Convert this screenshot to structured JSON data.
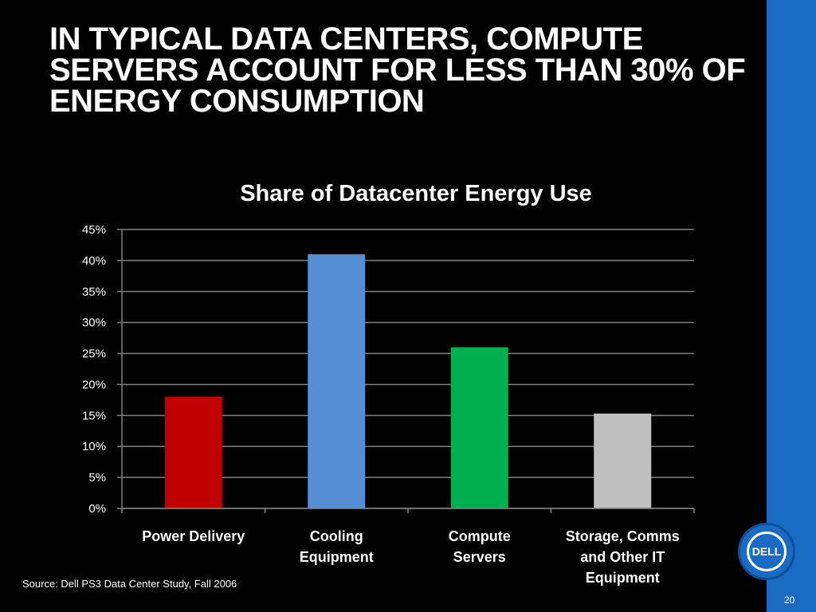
{
  "slide": {
    "title": "IN TYPICAL DATA CENTERS, COMPUTE SERVERS ACCOUNT FOR LESS THAN 30% OF ENERGY CONSUMPTION",
    "source": "Source: Dell PS3 Data Center Study, Fall 2006",
    "page_number": "20",
    "logo_text": "DELL"
  },
  "colors": {
    "background": "#000000",
    "accent_bar": "#1a6bc4"
  },
  "chart_data": {
    "type": "bar",
    "title": "Share of Datacenter Energy Use",
    "xlabel": "",
    "ylabel": "",
    "categories": [
      [
        "Power Delivery"
      ],
      [
        "Cooling",
        "Equipment"
      ],
      [
        "Compute",
        "Servers"
      ],
      [
        "Storage, Comms",
        "and Other IT",
        "Equipment"
      ]
    ],
    "values": [
      18,
      41,
      26,
      15.3
    ],
    "bar_colors": [
      "#c00000",
      "#558ed5",
      "#00b050",
      "#bfbfbf"
    ],
    "ylim": [
      0,
      45
    ],
    "yticks": [
      0,
      5,
      10,
      15,
      20,
      25,
      30,
      35,
      40,
      45
    ],
    "ytick_format": "%",
    "grid": true,
    "legend": "none"
  }
}
